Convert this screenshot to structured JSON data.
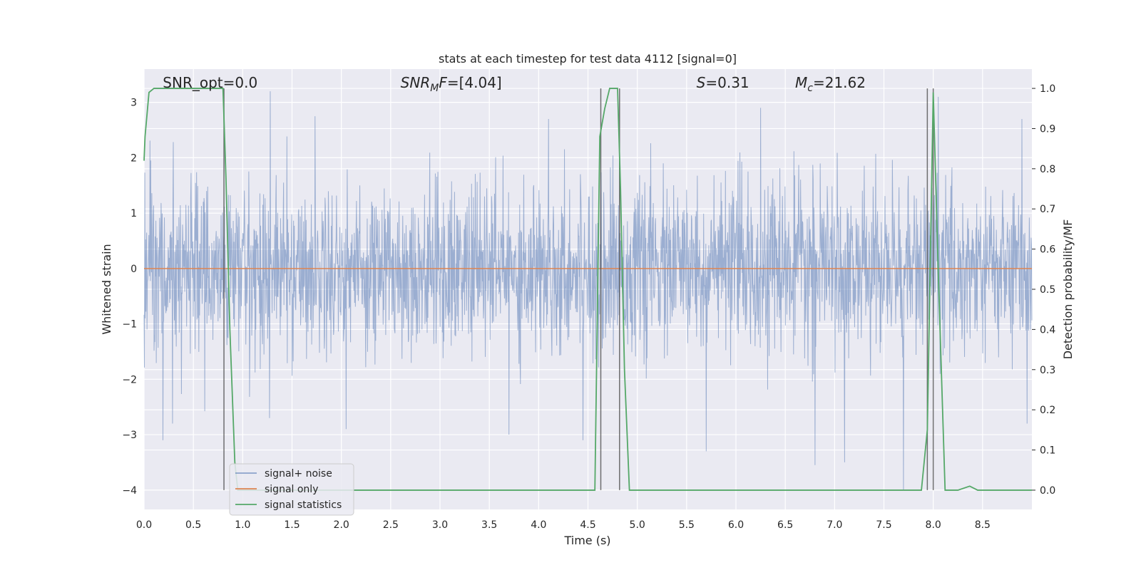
{
  "chart_data": {
    "type": "line",
    "title": "stats at each timestep for test data 4112 [signal=0]",
    "xlabel": "Time (s)",
    "ylabel": "Whitened strain",
    "ylabel_right": "Detection probability/MF",
    "xlim": [
      0.0,
      9.0
    ],
    "ylim": [
      -4.35,
      3.6
    ],
    "ylim_right": [
      -0.048,
      1.048
    ],
    "grid": true,
    "legend_position": "lower-left",
    "x_ticks": [
      "0.0",
      "0.5",
      "1.0",
      "1.5",
      "2.0",
      "2.5",
      "3.0",
      "3.5",
      "4.0",
      "4.5",
      "5.0",
      "5.5",
      "6.0",
      "6.5",
      "7.0",
      "7.5",
      "8.0",
      "8.5"
    ],
    "y_ticks": [
      "−4",
      "−3",
      "−2",
      "−1",
      "0",
      "1",
      "2",
      "3"
    ],
    "y_ticks_right": [
      "0.0",
      "0.1",
      "0.2",
      "0.3",
      "0.4",
      "0.5",
      "0.6",
      "0.7",
      "0.8",
      "0.9",
      "1.0"
    ],
    "annotations": [
      {
        "text": "SNR_opt=0.0",
        "x": 0.19
      },
      {
        "text": "SNR_MF=[4.04]",
        "x": 2.6
      },
      {
        "text": "S=0.31",
        "x": 5.6
      },
      {
        "text": "M_c=21.62",
        "x": 6.6
      }
    ],
    "vertical_lines": [
      0.81,
      4.63,
      4.82,
      7.94,
      8.0
    ],
    "series": [
      {
        "name": "signal+ noise",
        "color": "#4c72b0",
        "axis": "left",
        "noise_std": 0.75,
        "extremes": [
          {
            "x": 0.19,
            "y": -3.1
          },
          {
            "x": 0.29,
            "y": -2.8
          },
          {
            "x": 1.28,
            "y": 3.2
          },
          {
            "x": 1.27,
            "y": -2.7
          },
          {
            "x": 2.05,
            "y": -2.9
          },
          {
            "x": 3.7,
            "y": -3.0
          },
          {
            "x": 4.45,
            "y": -3.1
          },
          {
            "x": 4.1,
            "y": 2.7
          },
          {
            "x": 5.7,
            "y": -3.3
          },
          {
            "x": 6.8,
            "y": -3.55
          },
          {
            "x": 7.7,
            "y": -4.0
          },
          {
            "x": 6.25,
            "y": 2.9
          },
          {
            "x": 8.05,
            "y": 3.1
          },
          {
            "x": 8.9,
            "y": 2.7
          },
          {
            "x": 8.95,
            "y": -2.8
          },
          {
            "x": 7.1,
            "y": -3.5
          }
        ]
      },
      {
        "name": "signal only",
        "color": "#dd8452",
        "axis": "left",
        "x": [
          0.0,
          9.0
        ],
        "y": [
          0.0,
          0.0
        ]
      },
      {
        "name": "signal statistics",
        "color": "#55a868",
        "axis": "right",
        "x": [
          0.0,
          0.01,
          0.05,
          0.1,
          0.2,
          0.5,
          0.75,
          0.8,
          0.83,
          0.87,
          0.92,
          0.95,
          1.5,
          2.0,
          3.0,
          4.0,
          4.5,
          4.57,
          4.62,
          4.67,
          4.72,
          4.8,
          4.83,
          4.87,
          4.92,
          5.5,
          6.0,
          7.0,
          7.5,
          7.88,
          7.94,
          8.0,
          8.05,
          8.12,
          8.25,
          8.37,
          8.45,
          9.0
        ],
        "y": [
          0.82,
          0.88,
          0.99,
          1.0,
          1.0,
          1.0,
          1.0,
          1.0,
          0.78,
          0.4,
          0.07,
          0.0,
          0.0,
          0.0,
          0.0,
          0.0,
          0.0,
          0.0,
          0.88,
          0.95,
          1.0,
          1.0,
          0.75,
          0.3,
          0.0,
          0.0,
          0.0,
          0.0,
          0.0,
          0.0,
          0.15,
          0.99,
          0.55,
          0.0,
          0.0,
          0.01,
          0.0,
          0.0
        ]
      }
    ]
  }
}
